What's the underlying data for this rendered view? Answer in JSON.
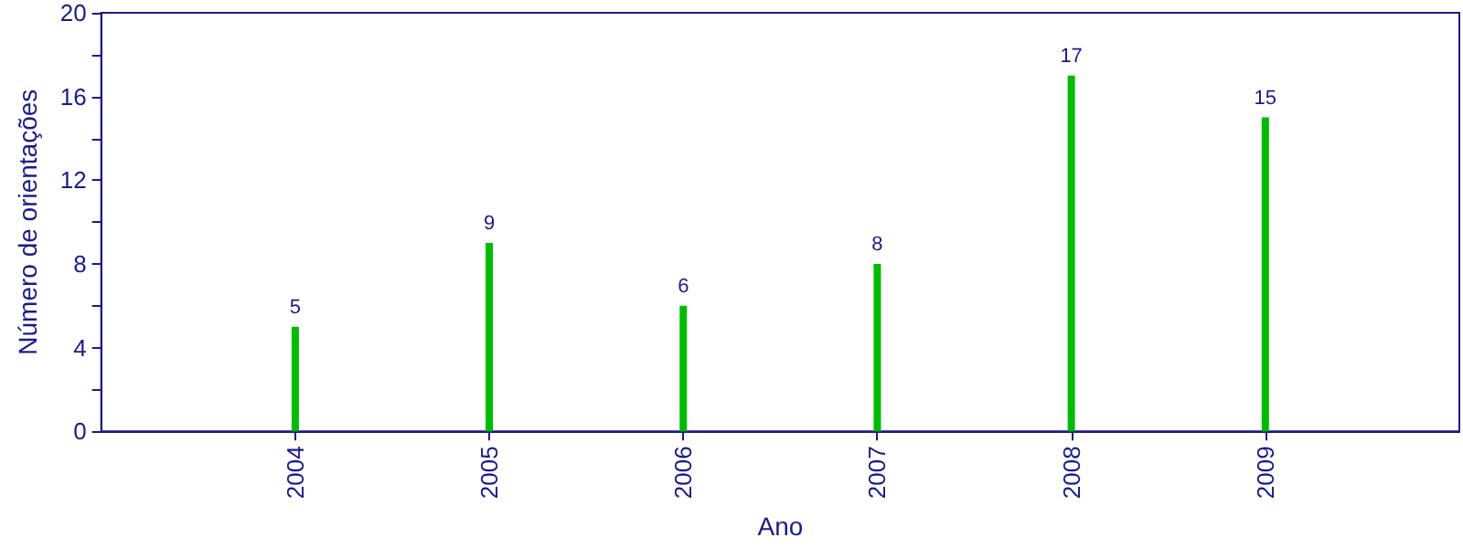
{
  "chart_data": {
    "type": "bar",
    "xlabel": "Ano",
    "ylabel": "Número de orientações",
    "x": [
      2004,
      2005,
      2006,
      2007,
      2008,
      2009
    ],
    "values": [
      5,
      9,
      6,
      8,
      17,
      15
    ],
    "color": "#00bb00",
    "xlim": [
      2003,
      2010
    ],
    "xticks": [
      2004,
      2005,
      2006,
      2007,
      2008,
      2009
    ],
    "ylim": [
      0,
      20
    ],
    "yticks": [
      0,
      {
        "value": 2,
        "label": null
      },
      4,
      {
        "value": 6,
        "label": null
      },
      8,
      {
        "value": 10,
        "label": null
      },
      12,
      {
        "value": 14,
        "label": null
      },
      16,
      {
        "value": 18,
        "label": null
      },
      20
    ],
    "data_labels": true,
    "grid": false
  }
}
